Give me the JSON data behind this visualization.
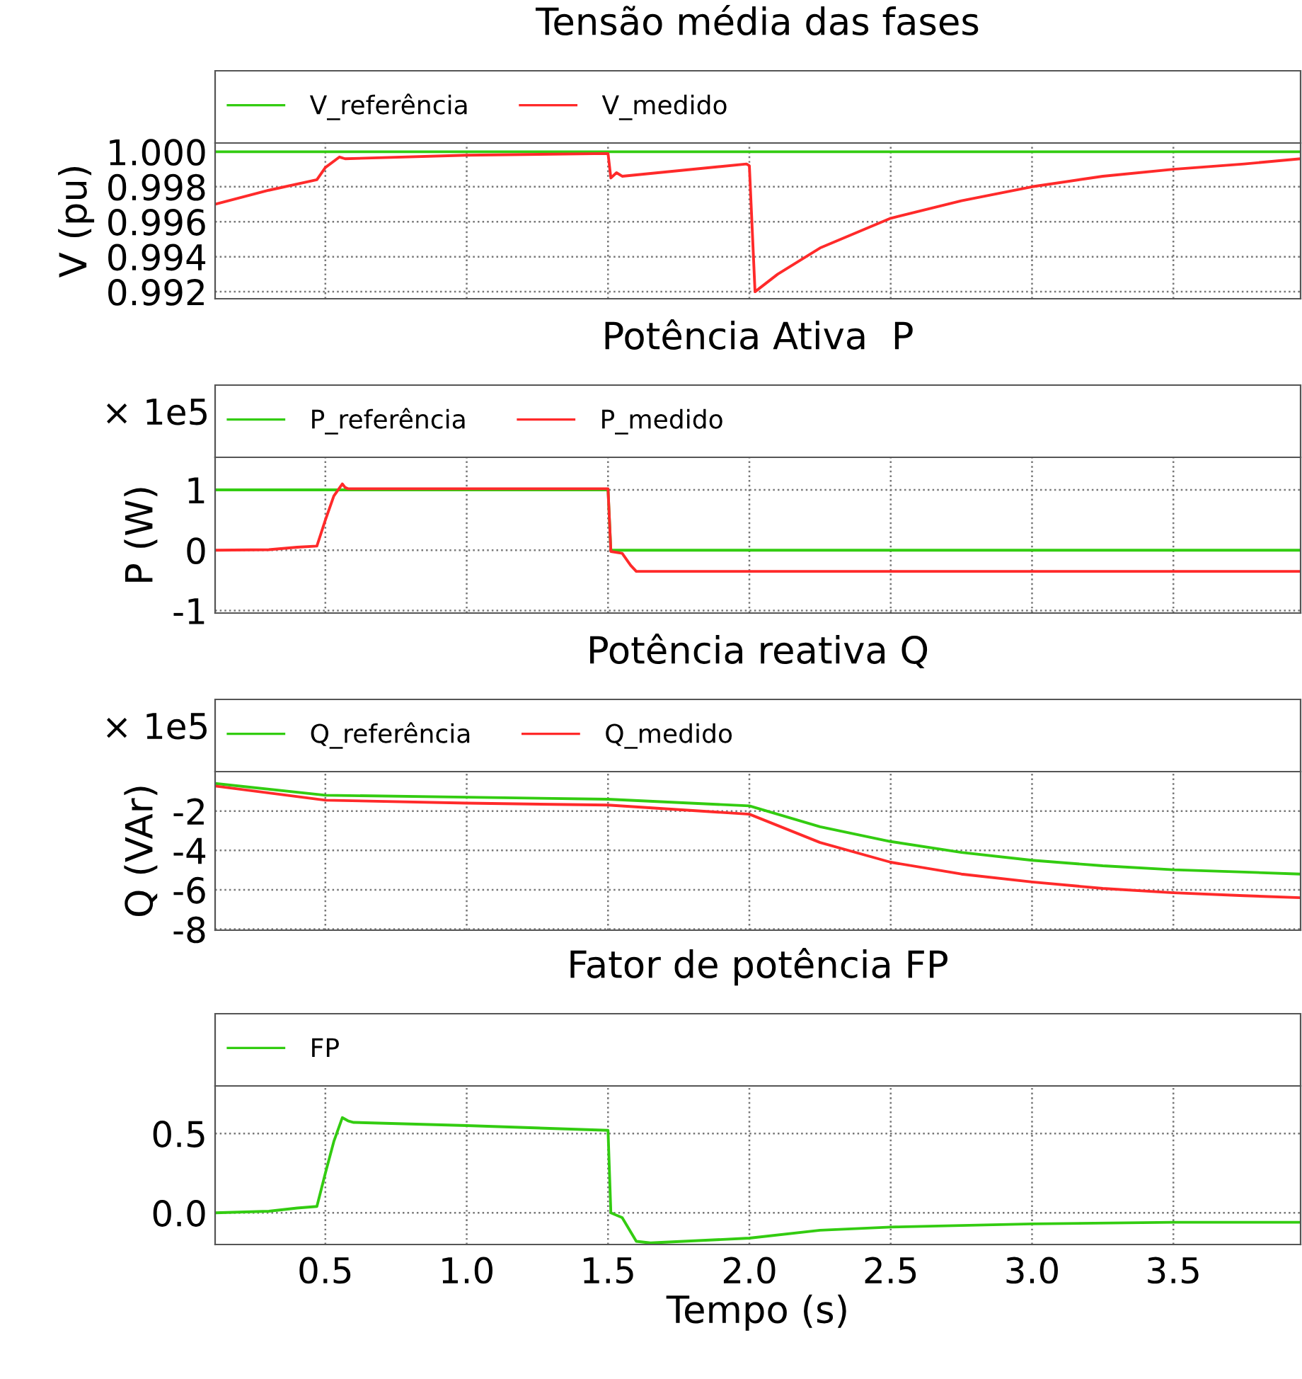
{
  "chart_data": [
    {
      "type": "line",
      "title": "Tensão média das fases",
      "ylabel": "V (pu)",
      "legend": "top",
      "grid": true,
      "line_style": "solid",
      "tick_labels": "y",
      "xlim": [
        0.11,
        3.95
      ],
      "xticks": [
        0.5,
        1,
        1.5,
        2,
        2.5,
        3,
        3.5
      ],
      "ylim": [
        0.9916,
        1.0005
      ],
      "yticks": [
        {
          "value": 0.992,
          "label": "0.992"
        },
        {
          "value": 0.994,
          "label": "0.994"
        },
        {
          "value": 0.996,
          "label": "0.996"
        },
        {
          "value": 0.998,
          "label": "0.998"
        },
        {
          "value": 1.0,
          "label": "1.000"
        }
      ],
      "series": [
        {
          "name": "V_referência",
          "color": "#33cc11",
          "x": [
            0.11,
            3.95
          ],
          "values": [
            1.0,
            1.0
          ]
        },
        {
          "name": "V_medido",
          "color": "#ff2a2a",
          "x": [
            0.11,
            0.3,
            0.47,
            0.5,
            0.55,
            0.57,
            1.0,
            1.5,
            1.51,
            1.53,
            1.55,
            1.99,
            2.0,
            2.02,
            2.1,
            2.25,
            2.5,
            2.75,
            3.0,
            3.25,
            3.5,
            3.75,
            3.95
          ],
          "values": [
            0.997,
            0.9978,
            0.9984,
            0.9991,
            0.9997,
            0.9996,
            0.9998,
            0.9999,
            0.9985,
            0.9988,
            0.9986,
            0.9993,
            0.9992,
            0.992,
            0.993,
            0.9945,
            0.9962,
            0.9972,
            0.998,
            0.9986,
            0.999,
            0.9993,
            0.9996
          ]
        }
      ]
    },
    {
      "type": "line",
      "title": "Potência Ativa  P",
      "ylabel": "P (W)",
      "annotations": [
        "× 1e5"
      ],
      "legend": "top",
      "grid": true,
      "line_style": "solid",
      "tick_labels": "y",
      "xlim": [
        0.11,
        3.95
      ],
      "xticks": [
        0.5,
        1,
        1.5,
        2,
        2.5,
        3,
        3.5
      ],
      "ylim": [
        -1.04,
        1.54
      ],
      "yticks": [
        -1,
        0,
        1
      ],
      "series": [
        {
          "name": "P_referência",
          "color": "#33cc11",
          "x": [
            0.11,
            1.5,
            1.51,
            3.95
          ],
          "values": [
            1,
            1,
            0,
            0
          ]
        },
        {
          "name": "P_medido",
          "color": "#ff2a2a",
          "x": [
            0.11,
            0.3,
            0.4,
            0.47,
            0.5,
            0.53,
            0.56,
            0.57,
            0.58,
            1.0,
            1.5,
            1.51,
            1.55,
            1.58,
            1.6,
            1.7,
            3.95
          ],
          "values": [
            0,
            0.01,
            0.05,
            0.07,
            0.5,
            0.9,
            1.1,
            1.04,
            1.02,
            1.02,
            1.02,
            -0.02,
            -0.05,
            -0.25,
            -0.35,
            -0.35,
            -0.35
          ]
        }
      ]
    },
    {
      "type": "line",
      "title": "Potência reativa Q",
      "ylabel": "Q (VAr)",
      "annotations": [
        "× 1e5"
      ],
      "legend": "top",
      "grid": true,
      "line_style": "solid",
      "tick_labels": "y",
      "xlim": [
        0.11,
        3.95
      ],
      "xticks": [
        0.5,
        1,
        1.5,
        2,
        2.5,
        3,
        3.5
      ],
      "ylim": [
        -8.05,
        0.0
      ],
      "yticks": [
        -8,
        -6,
        -4,
        -2
      ],
      "series": [
        {
          "name": "Q_referência",
          "color": "#33cc11",
          "x": [
            0.11,
            0.5,
            1.0,
            1.5,
            2.0,
            2.25,
            2.5,
            2.75,
            3.0,
            3.25,
            3.5,
            3.75,
            3.95
          ],
          "values": [
            -0.6,
            -1.2,
            -1.3,
            -1.4,
            -1.74,
            -2.8,
            -3.55,
            -4.1,
            -4.5,
            -4.78,
            -4.98,
            -5.1,
            -5.2
          ]
        },
        {
          "name": "Q_medido",
          "color": "#ff2a2a",
          "x": [
            0.11,
            0.5,
            1.0,
            1.5,
            2.0,
            2.25,
            2.5,
            2.75,
            3.0,
            3.25,
            3.5,
            3.75,
            3.95
          ],
          "values": [
            -0.73,
            -1.45,
            -1.6,
            -1.7,
            -2.16,
            -3.6,
            -4.6,
            -5.2,
            -5.6,
            -5.93,
            -6.15,
            -6.3,
            -6.4
          ]
        }
      ]
    },
    {
      "type": "line",
      "title": "Fator de potência FP",
      "xlabel": "Tempo (s)",
      "legend": "top",
      "grid": true,
      "line_style": "solid",
      "xlim": [
        0.11,
        3.95
      ],
      "xticks": [
        0.5,
        {
          "value": 1,
          "label": "1.0"
        },
        1.5,
        {
          "value": 2,
          "label": "2.0"
        },
        2.5,
        {
          "value": 3,
          "label": "3.0"
        },
        3.5
      ],
      "ylim": [
        -0.2,
        0.8
      ],
      "yticks": [
        {
          "value": 0.0,
          "label": "0.0"
        },
        {
          "value": 0.5,
          "label": "0.5"
        }
      ],
      "series": [
        {
          "name": "FP",
          "color": "#33cc11",
          "x": [
            0.11,
            0.3,
            0.4,
            0.47,
            0.5,
            0.53,
            0.56,
            0.58,
            0.6,
            1.0,
            1.5,
            1.51,
            1.55,
            1.6,
            1.65,
            2.0,
            2.25,
            2.5,
            3.0,
            3.5,
            3.95
          ],
          "values": [
            0.0,
            0.01,
            0.03,
            0.04,
            0.25,
            0.45,
            0.6,
            0.58,
            0.57,
            0.55,
            0.52,
            0.0,
            -0.03,
            -0.18,
            -0.19,
            -0.16,
            -0.11,
            -0.09,
            -0.07,
            -0.06,
            -0.06
          ]
        }
      ]
    }
  ]
}
